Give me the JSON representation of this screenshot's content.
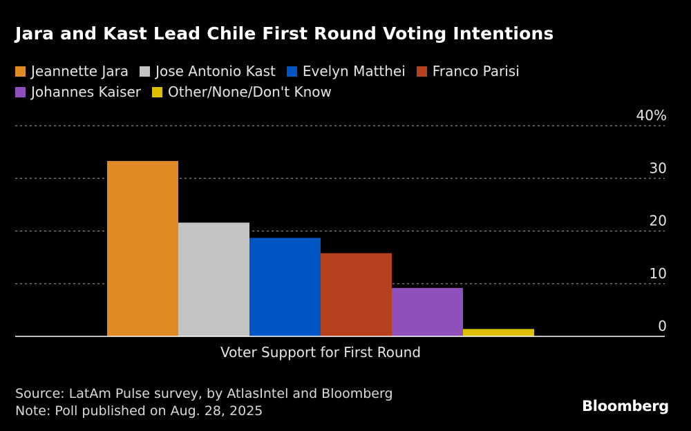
{
  "chart_data": {
    "type": "bar",
    "title": "Jara and Kast Lead Chile First Round Voting Intentions",
    "xlabel": "Voter Support for First Round",
    "ylabel": "",
    "categories": [
      "Voter Support for First Round"
    ],
    "series": [
      {
        "name": "Jeannette Jara",
        "values": [
          33.3
        ],
        "color": "#e08a26"
      },
      {
        "name": "Jose Antonio Kast",
        "values": [
          21.6
        ],
        "color": "#c4c4c4"
      },
      {
        "name": "Evelyn Matthei",
        "values": [
          18.7
        ],
        "color": "#0055c4"
      },
      {
        "name": "Franco Parisi",
        "values": [
          15.8
        ],
        "color": "#b5411e"
      },
      {
        "name": "Johannes Kaiser",
        "values": [
          9.2
        ],
        "color": "#9050bb"
      },
      {
        "name": "Other/None/Don't Know",
        "values": [
          1.4
        ],
        "color": "#dcc000"
      }
    ],
    "ylim": [
      0,
      40
    ],
    "yticks": [
      0,
      10,
      20,
      30,
      40
    ],
    "ytick_labels": [
      "0",
      "10",
      "20",
      "30",
      "40%"
    ],
    "grid": true,
    "legend_position": "top-left",
    "yaxis_side": "right"
  },
  "footer": {
    "source": "Source: LatAm Pulse survey, by AtlasIntel and Bloomberg",
    "note": "Note: Poll published on Aug. 28, 2025",
    "logo": "Bloomberg"
  }
}
